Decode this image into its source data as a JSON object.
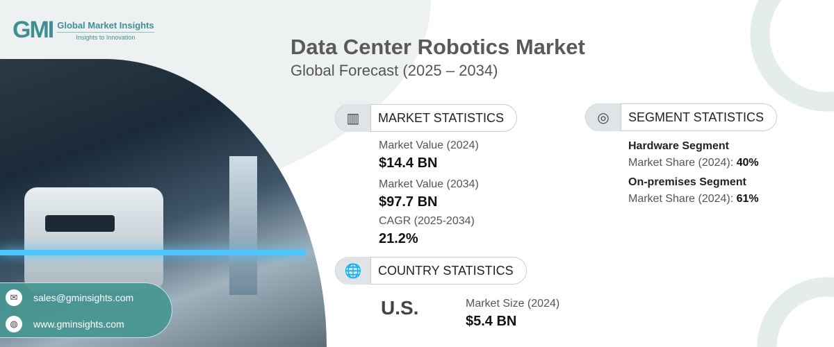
{
  "logo": {
    "mark": "GMI",
    "name": "Global Market Insights",
    "tagline": "Insights to Innovation"
  },
  "header": {
    "title": "Data Center Robotics Market",
    "subtitle": "Global Forecast (2025 – 2034)"
  },
  "market": {
    "heading": "MARKET STATISTICS",
    "items": [
      {
        "label": "Market Value (2024)",
        "value": "$14.4 BN"
      },
      {
        "label": "Market Value (2034)",
        "value": "$97.7 BN"
      },
      {
        "label": "CAGR (2025-2034)",
        "value": "21.2%"
      }
    ]
  },
  "segment": {
    "heading": "SEGMENT STATISTICS",
    "items": [
      {
        "name": "Hardware Segment",
        "label": "Market Share (2024): ",
        "value": "40%"
      },
      {
        "name": "On-premises Segment",
        "label": "Market Share (2024): ",
        "value": "61%"
      }
    ]
  },
  "country": {
    "heading": "COUNTRY STATISTICS",
    "name": "U.S.",
    "label": "Market Size (2024)",
    "value": "$5.4 BN"
  },
  "contact": {
    "email": "sales@gminsights.com",
    "website": "www.gminsights.com"
  }
}
